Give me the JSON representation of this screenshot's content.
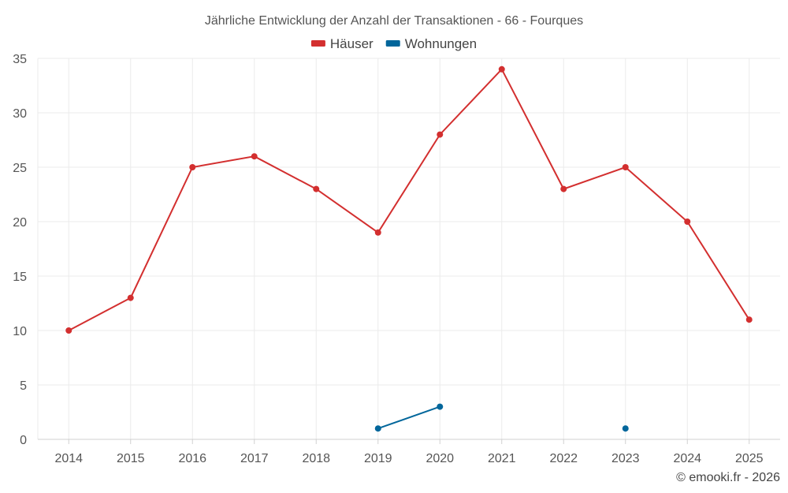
{
  "chart_data": {
    "type": "line",
    "title": "Jährliche Entwicklung der Anzahl der Transaktionen - 66 - Fourques",
    "categories": [
      "2014",
      "2015",
      "2016",
      "2017",
      "2018",
      "2019",
      "2020",
      "2021",
      "2022",
      "2023",
      "2024",
      "2025"
    ],
    "series": [
      {
        "name": "Häuser",
        "color": "#d32f2f",
        "values": [
          10,
          13,
          25,
          26,
          23,
          19,
          28,
          34,
          23,
          25,
          20,
          11
        ]
      },
      {
        "name": "Wohnungen",
        "color": "#01669b",
        "values": [
          null,
          null,
          null,
          null,
          null,
          1,
          3,
          null,
          null,
          1,
          null,
          null
        ]
      }
    ],
    "ylim": [
      0,
      35
    ],
    "yticks": [
      0,
      5,
      10,
      15,
      20,
      25,
      30,
      35
    ],
    "grid": true,
    "legend_position": "top-center"
  },
  "credit": "© emooki.fr - 2026"
}
